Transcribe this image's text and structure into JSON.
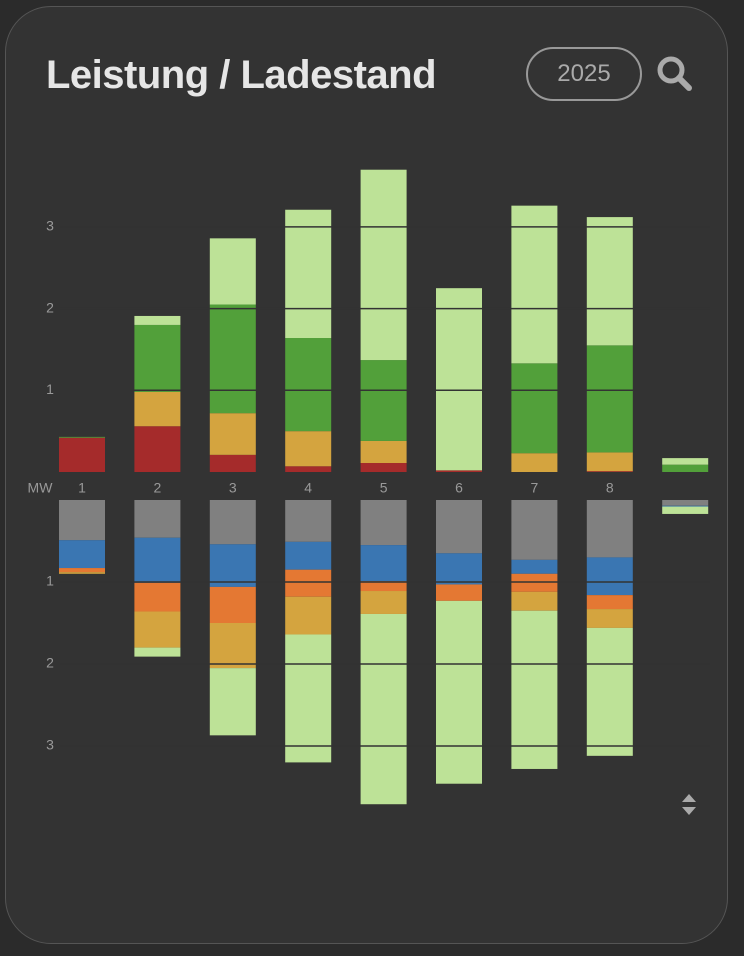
{
  "header": {
    "title": "Leistung / Ladestand",
    "year": "2025"
  },
  "chart_data": [
    {
      "type": "bar",
      "stacked": true,
      "y_label": "MW",
      "categories": [
        "1",
        "2",
        "3",
        "4",
        "5",
        "6",
        "7",
        "8",
        null
      ],
      "ylim": [
        0,
        3.9
      ],
      "yticks": [
        1,
        2,
        3
      ],
      "grid": true,
      "y_inverted": false,
      "series": [
        {
          "color": "#a52b2b",
          "values": [
            0.42,
            0.56,
            0.21,
            0.07,
            0.11,
            0.02,
            0,
            0.01,
            0
          ]
        },
        {
          "color": "#d4a43f",
          "values": [
            0,
            0.42,
            0.51,
            0.43,
            0.27,
            0,
            0.23,
            0.23,
            0
          ]
        },
        {
          "color": "#52a03a",
          "values": [
            0.01,
            0.82,
            1.33,
            1.14,
            0.99,
            0,
            1.1,
            1.31,
            0.09
          ]
        },
        {
          "color": "#bde297",
          "values": [
            0,
            0.11,
            0.81,
            1.57,
            2.33,
            2.23,
            1.93,
            1.57,
            0.08
          ]
        }
      ]
    },
    {
      "type": "bar",
      "stacked": true,
      "ylim": [
        0,
        4
      ],
      "yticks": [
        1,
        2,
        3
      ],
      "grid": true,
      "y_inverted": true,
      "series": [
        {
          "color": "#808080",
          "values": [
            0.49,
            0.46,
            0.54,
            0.51,
            0.55,
            0.65,
            0.73,
            0.7,
            0.07
          ]
        },
        {
          "color": "#3a76b2",
          "values": [
            0.34,
            0.55,
            0.52,
            0.34,
            0.44,
            0.38,
            0.17,
            0.46,
            0.01
          ]
        },
        {
          "color": "#e47833",
          "values": [
            0.05,
            0.35,
            0.44,
            0.33,
            0.12,
            0.2,
            0.22,
            0.17,
            0
          ]
        },
        {
          "color": "#d4a43f",
          "values": [
            0.02,
            0.44,
            0.55,
            0.46,
            0.28,
            0,
            0.23,
            0.23,
            0
          ]
        },
        {
          "color": "#bde297",
          "values": [
            0,
            0.11,
            0.82,
            1.56,
            2.32,
            2.23,
            1.93,
            1.56,
            0.09
          ]
        }
      ]
    }
  ]
}
